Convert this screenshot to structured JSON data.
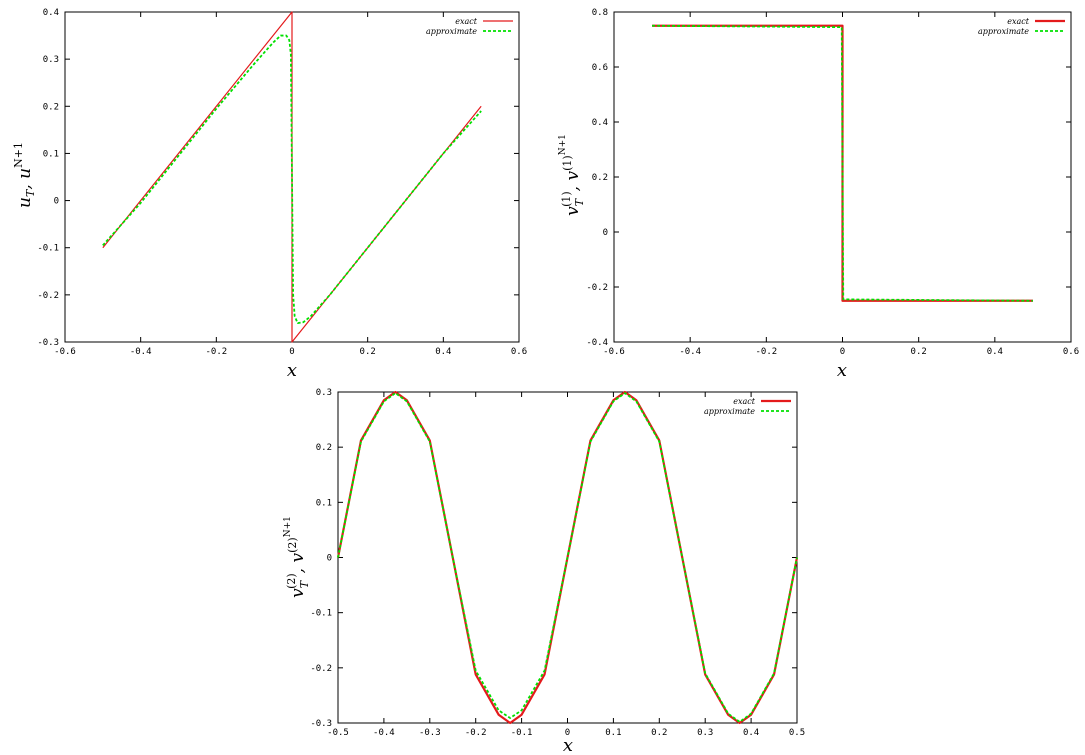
{
  "chart_data": [
    {
      "type": "line",
      "xlabel": "x",
      "ylabel": "u_T, u^{N+1}",
      "xlim": [
        -0.6,
        0.6
      ],
      "ylim": [
        -0.3,
        0.4
      ],
      "xticks": [
        -0.6,
        -0.4,
        -0.2,
        0,
        0.2,
        0.4,
        0.6
      ],
      "yticks": [
        -0.3,
        -0.2,
        -0.1,
        0,
        0.1,
        0.2,
        0.3,
        0.4
      ],
      "xtick_labels": [
        "-0.6",
        "-0.4",
        "-0.2",
        "0",
        "0.2",
        "0.4",
        "0.6"
      ],
      "ytick_labels": [
        "-0.3",
        "-0.2",
        "-0.1",
        "0",
        "0.1",
        "0.2",
        "0.3",
        "0.4"
      ],
      "legend_position": "top-right",
      "grid": false,
      "series": [
        {
          "name": "exact",
          "color": "#e41a1c",
          "x": [
            -0.5,
            0,
            0,
            0.5
          ],
          "y": [
            -0.1,
            0.4,
            -0.3,
            0.2
          ]
        },
        {
          "name": "approximate",
          "color": "#00e000",
          "dashed": true,
          "x": [
            -0.5,
            -0.4,
            -0.3,
            -0.2,
            -0.1,
            -0.05,
            -0.03,
            -0.015,
            -0.007,
            -0.003,
            0,
            0.003,
            0.007,
            0.015,
            0.03,
            0.05,
            0.1,
            0.2,
            0.3,
            0.4,
            0.5
          ],
          "y": [
            -0.095,
            -0.005,
            0.095,
            0.195,
            0.29,
            0.335,
            0.35,
            0.35,
            0.34,
            0.31,
            0.05,
            -0.2,
            -0.245,
            -0.26,
            -0.258,
            -0.245,
            -0.2,
            -0.1,
            0.0,
            0.1,
            0.19
          ]
        }
      ]
    },
    {
      "type": "line",
      "xlabel": "x",
      "ylabel": "v_T^{(1)}, v^{(1)^{N+1}}",
      "xlim": [
        -0.6,
        0.6
      ],
      "ylim": [
        -0.4,
        0.8
      ],
      "xticks": [
        -0.6,
        -0.4,
        -0.2,
        0,
        0.2,
        0.4,
        0.6
      ],
      "yticks": [
        -0.4,
        -0.2,
        0,
        0.2,
        0.4,
        0.6,
        0.8
      ],
      "xtick_labels": [
        "-0.6",
        "-0.4",
        "-0.2",
        "0",
        "0.2",
        "0.4",
        "0.6"
      ],
      "ytick_labels": [
        "-0.4",
        "-0.2",
        "0",
        "0.2",
        "0.4",
        "0.6",
        "0.8"
      ],
      "legend_position": "top-right",
      "grid": false,
      "series": [
        {
          "name": "exact",
          "color": "#e41a1c",
          "x": [
            -0.5,
            0,
            0,
            0.5
          ],
          "y": [
            0.75,
            0.75,
            -0.25,
            -0.25
          ]
        },
        {
          "name": "approximate",
          "color": "#00e000",
          "dashed": true,
          "x": [
            -0.5,
            -0.002,
            0,
            0.002,
            0.5
          ],
          "y": [
            0.75,
            0.745,
            0.25,
            -0.245,
            -0.25
          ]
        }
      ]
    },
    {
      "type": "line",
      "xlabel": "x",
      "ylabel": "v_T^{(2)}, v^{(2)^{N+1}}",
      "xlim": [
        -0.5,
        0.5
      ],
      "ylim": [
        -0.3,
        0.3
      ],
      "xticks": [
        -0.5,
        -0.4,
        -0.3,
        -0.2,
        -0.1,
        0,
        0.1,
        0.2,
        0.3,
        0.4,
        0.5
      ],
      "yticks": [
        -0.3,
        -0.2,
        -0.1,
        0,
        0.1,
        0.2,
        0.3
      ],
      "xtick_labels": [
        "-0.5",
        "-0.4",
        "-0.3",
        "-0.2",
        "-0.1",
        "0",
        "0.1",
        "0.2",
        "0.3",
        "0.4",
        "0.5"
      ],
      "ytick_labels": [
        "-0.3",
        "-0.2",
        "-0.1",
        "0",
        "0.1",
        "0.2",
        "0.3"
      ],
      "legend_position": "top-right",
      "grid": false,
      "series": [
        {
          "name": "exact",
          "color": "#e41a1c",
          "x": [
            -0.5,
            -0.45,
            -0.4,
            -0.375,
            -0.35,
            -0.3,
            -0.25,
            -0.2,
            -0.15,
            -0.125,
            -0.1,
            -0.05,
            0,
            0.05,
            0.1,
            0.125,
            0.15,
            0.2,
            0.25,
            0.3,
            0.35,
            0.375,
            0.4,
            0.45,
            0.5
          ],
          "y": [
            0,
            0.212,
            0.285,
            0.3,
            0.285,
            0.212,
            0,
            -0.212,
            -0.285,
            -0.3,
            -0.285,
            -0.212,
            0,
            0.212,
            0.285,
            0.3,
            0.285,
            0.212,
            0,
            -0.212,
            -0.285,
            -0.3,
            -0.285,
            -0.212,
            0
          ]
        },
        {
          "name": "approximate",
          "color": "#00e000",
          "dashed": true,
          "x": [
            -0.5,
            -0.45,
            -0.4,
            -0.375,
            -0.35,
            -0.3,
            -0.25,
            -0.2,
            -0.15,
            -0.125,
            -0.1,
            -0.05,
            0,
            0.05,
            0.1,
            0.125,
            0.15,
            0.2,
            0.25,
            0.3,
            0.35,
            0.375,
            0.4,
            0.45,
            0.5
          ],
          "y": [
            0,
            0.21,
            0.283,
            0.298,
            0.283,
            0.21,
            0,
            -0.205,
            -0.277,
            -0.291,
            -0.277,
            -0.205,
            0,
            0.21,
            0.283,
            0.298,
            0.283,
            0.21,
            0,
            -0.21,
            -0.283,
            -0.298,
            -0.283,
            -0.21,
            0
          ]
        }
      ]
    }
  ]
}
